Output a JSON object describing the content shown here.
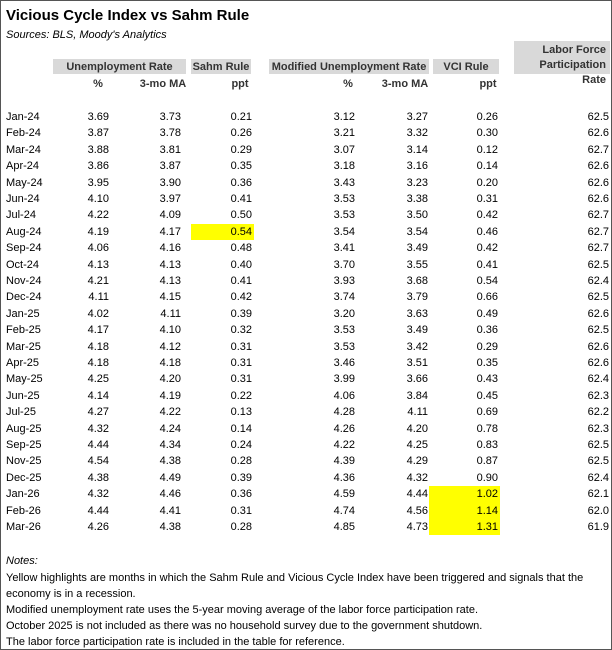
{
  "header": {
    "title": "Vicious Cycle Index vs Sahm Rule",
    "sources": "Sources: BLS, Moody's Analytics"
  },
  "table": {
    "groups": [
      "Unemployment Rate",
      "Sahm Rule",
      "Modified Unemployment Rate",
      "VCI Rule",
      "Labor Force Participation Rate"
    ],
    "units": [
      "%",
      "3-mo MA",
      "ppt",
      "%",
      "3-mo MA",
      "ppt",
      "%"
    ],
    "rows": [
      {
        "cells": [
          "Jan-24",
          "3.69",
          "3.73",
          "0.21",
          "3.12",
          "3.27",
          "0.26",
          "62.5"
        ]
      },
      {
        "cells": [
          "Feb-24",
          "3.87",
          "3.78",
          "0.26",
          "3.21",
          "3.32",
          "0.30",
          "62.6"
        ]
      },
      {
        "cells": [
          "Mar-24",
          "3.88",
          "3.81",
          "0.29",
          "3.07",
          "3.14",
          "0.12",
          "62.7"
        ]
      },
      {
        "cells": [
          "Apr-24",
          "3.86",
          "3.87",
          "0.35",
          "3.18",
          "3.16",
          "0.14",
          "62.6"
        ]
      },
      {
        "cells": [
          "May-24",
          "3.95",
          "3.90",
          "0.36",
          "3.43",
          "3.23",
          "0.20",
          "62.6"
        ]
      },
      {
        "cells": [
          "Jun-24",
          "4.10",
          "3.97",
          "0.41",
          "3.53",
          "3.38",
          "0.31",
          "62.6"
        ]
      },
      {
        "cells": [
          "Jul-24",
          "4.22",
          "4.09",
          "0.50",
          "3.53",
          "3.50",
          "0.42",
          "62.7"
        ]
      },
      {
        "cells": [
          "Aug-24",
          "4.19",
          "4.17",
          "0.54",
          "3.54",
          "3.54",
          "0.46",
          "62.7"
        ],
        "highlight": [
          3
        ]
      },
      {
        "cells": [
          "Sep-24",
          "4.06",
          "4.16",
          "0.48",
          "3.41",
          "3.49",
          "0.42",
          "62.7"
        ]
      },
      {
        "cells": [
          "Oct-24",
          "4.13",
          "4.13",
          "0.40",
          "3.70",
          "3.55",
          "0.41",
          "62.5"
        ]
      },
      {
        "cells": [
          "Nov-24",
          "4.21",
          "4.13",
          "0.41",
          "3.93",
          "3.68",
          "0.54",
          "62.4"
        ]
      },
      {
        "cells": [
          "Dec-24",
          "4.11",
          "4.15",
          "0.42",
          "3.74",
          "3.79",
          "0.66",
          "62.5"
        ]
      },
      {
        "cells": [
          "Jan-25",
          "4.02",
          "4.11",
          "0.39",
          "3.20",
          "3.63",
          "0.49",
          "62.6"
        ]
      },
      {
        "cells": [
          "Feb-25",
          "4.17",
          "4.10",
          "0.32",
          "3.53",
          "3.49",
          "0.36",
          "62.5"
        ]
      },
      {
        "cells": [
          "Mar-25",
          "4.18",
          "4.12",
          "0.31",
          "3.53",
          "3.42",
          "0.29",
          "62.6"
        ]
      },
      {
        "cells": [
          "Apr-25",
          "4.18",
          "4.18",
          "0.31",
          "3.46",
          "3.51",
          "0.35",
          "62.6"
        ]
      },
      {
        "cells": [
          "May-25",
          "4.25",
          "4.20",
          "0.31",
          "3.99",
          "3.66",
          "0.43",
          "62.4"
        ]
      },
      {
        "cells": [
          "Jun-25",
          "4.14",
          "4.19",
          "0.22",
          "4.06",
          "3.84",
          "0.45",
          "62.3"
        ]
      },
      {
        "cells": [
          "Jul-25",
          "4.27",
          "4.22",
          "0.13",
          "4.28",
          "4.11",
          "0.69",
          "62.2"
        ]
      },
      {
        "cells": [
          "Aug-25",
          "4.32",
          "4.24",
          "0.14",
          "4.26",
          "4.20",
          "0.78",
          "62.3"
        ]
      },
      {
        "cells": [
          "Sep-25",
          "4.44",
          "4.34",
          "0.24",
          "4.22",
          "4.25",
          "0.83",
          "62.5"
        ]
      },
      {
        "cells": [
          "Nov-25",
          "4.54",
          "4.38",
          "0.28",
          "4.39",
          "4.29",
          "0.87",
          "62.5"
        ]
      },
      {
        "cells": [
          "Dec-25",
          "4.38",
          "4.49",
          "0.39",
          "4.36",
          "4.32",
          "0.90",
          "62.4"
        ]
      },
      {
        "cells": [
          "Jan-26",
          "4.32",
          "4.46",
          "0.36",
          "4.59",
          "4.44",
          "1.02",
          "62.1"
        ],
        "highlight": [
          6
        ]
      },
      {
        "cells": [
          "Feb-26",
          "4.44",
          "4.41",
          "0.31",
          "4.74",
          "4.56",
          "1.14",
          "62.0"
        ],
        "highlight": [
          6
        ]
      },
      {
        "cells": [
          "Mar-26",
          "4.26",
          "4.38",
          "0.28",
          "4.85",
          "4.73",
          "1.31",
          "61.9"
        ],
        "highlight": [
          6
        ]
      }
    ]
  },
  "notes": {
    "heading": "Notes:",
    "lines": [
      "Yellow highlights are months in which the Sahm Rule and Vicious Cycle Index have been triggered and signals that the economy is in a recession.",
      "Modified unemployment rate uses the 5-year moving average of the labor force participation rate.",
      "October 2025 is not included as there was no household survey due to the government shutdown.",
      "The labor force participation rate is included in the table for reference."
    ]
  }
}
